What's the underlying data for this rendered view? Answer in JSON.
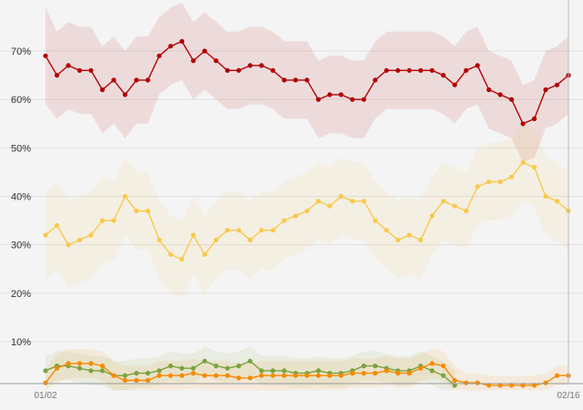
{
  "chart_data": {
    "type": "line",
    "x_start_label": "01/02",
    "x_end_label": "02/16",
    "y_ticks": [
      "10%",
      "20%",
      "30%",
      "40%",
      "50%",
      "60%",
      "70%"
    ],
    "y_tick_values": [
      10,
      20,
      30,
      40,
      50,
      60,
      70
    ],
    "ylim": [
      0,
      80
    ],
    "grid": true,
    "series": [
      {
        "color": "#b30000",
        "band_color": "#b30000",
        "values": [
          69,
          65,
          67,
          66,
          66,
          62,
          64,
          61,
          64,
          64,
          69,
          71,
          72,
          68,
          70,
          68,
          66,
          66,
          67,
          67,
          66,
          64,
          64,
          64,
          60,
          61,
          61,
          60,
          60,
          64,
          66,
          66,
          66,
          66,
          66,
          65,
          63,
          66,
          67,
          62,
          61,
          60,
          55,
          56,
          62,
          63,
          65
        ],
        "band": [
          10,
          9,
          9,
          9,
          9,
          9,
          9,
          9,
          9,
          9,
          8,
          8,
          8,
          8,
          8,
          8,
          8,
          8,
          8,
          8,
          8,
          8,
          8,
          8,
          8,
          8,
          8,
          8,
          8,
          8,
          8,
          8,
          8,
          8,
          8,
          8,
          8,
          8,
          8,
          8,
          8,
          8,
          8,
          8,
          8,
          8,
          8
        ]
      },
      {
        "color": "#f8c94a",
        "band_color": "#f8c94a",
        "values": [
          32,
          34,
          30,
          31,
          32,
          35,
          35,
          40,
          37,
          37,
          31,
          28,
          27,
          32,
          28,
          31,
          33,
          33,
          31,
          33,
          33,
          35,
          36,
          37,
          39,
          38,
          40,
          39,
          39,
          35,
          33,
          31,
          32,
          31,
          36,
          39,
          38,
          37,
          42,
          43,
          43,
          44,
          47,
          46,
          40,
          39,
          37
        ],
        "band": [
          9,
          9,
          9,
          9,
          9,
          9,
          8,
          8,
          8,
          8,
          8,
          8,
          8,
          8,
          8,
          8,
          8,
          8,
          8,
          8,
          8,
          8,
          8,
          8,
          8,
          8,
          8,
          8,
          8,
          8,
          8,
          8,
          8,
          8,
          8,
          8,
          8,
          8,
          8,
          8,
          8,
          8,
          8,
          8,
          8,
          8,
          8
        ]
      },
      {
        "color": "#7ba23f",
        "band_color": "#7ba23f",
        "values": [
          4,
          5,
          5,
          4.5,
          4,
          4,
          3,
          3,
          3.5,
          3.5,
          4,
          5,
          4.5,
          4.5,
          6,
          5,
          4.5,
          5,
          6,
          4,
          4,
          4,
          3.5,
          3.5,
          4,
          3.5,
          3.5,
          4,
          5,
          5,
          4.5,
          4,
          4,
          5,
          4,
          3,
          1,
          null,
          null,
          null,
          null,
          null,
          null,
          null,
          null,
          null,
          null
        ],
        "band": [
          3,
          3,
          3,
          3,
          3,
          3,
          3,
          3,
          3,
          3,
          3,
          3,
          3,
          3,
          3,
          3,
          3,
          3,
          3,
          3,
          3,
          3,
          3,
          3,
          3,
          3,
          3,
          3,
          3,
          3,
          3,
          3,
          3,
          3,
          3,
          3,
          3,
          0,
          0,
          0,
          0,
          0,
          0,
          0,
          0,
          0,
          0
        ]
      },
      {
        "color": "#f58a00",
        "band_color": "#f58a00",
        "values": [
          1.5,
          4.5,
          5.5,
          5.5,
          5.5,
          5,
          3,
          2,
          2,
          2,
          3,
          3,
          3,
          3.5,
          3,
          3,
          3,
          2.5,
          2.5,
          3,
          3,
          3,
          3,
          3,
          3,
          3,
          3,
          3.5,
          3.5,
          3.5,
          4,
          3.5,
          3.5,
          4.5,
          5.5,
          5,
          2,
          1.5,
          1.5,
          1,
          1,
          1,
          1,
          1,
          1.5,
          3,
          3
        ],
        "band": [
          3,
          3,
          3,
          3,
          3,
          3,
          3,
          3,
          3,
          3,
          3,
          3,
          3,
          3,
          3,
          3,
          3,
          3,
          3,
          3,
          3,
          3,
          3,
          3,
          3,
          3,
          3,
          3,
          3,
          3,
          3,
          3,
          3,
          3,
          3,
          3,
          3,
          2,
          2,
          2,
          2,
          2,
          2,
          2,
          2,
          2,
          2
        ]
      }
    ]
  }
}
